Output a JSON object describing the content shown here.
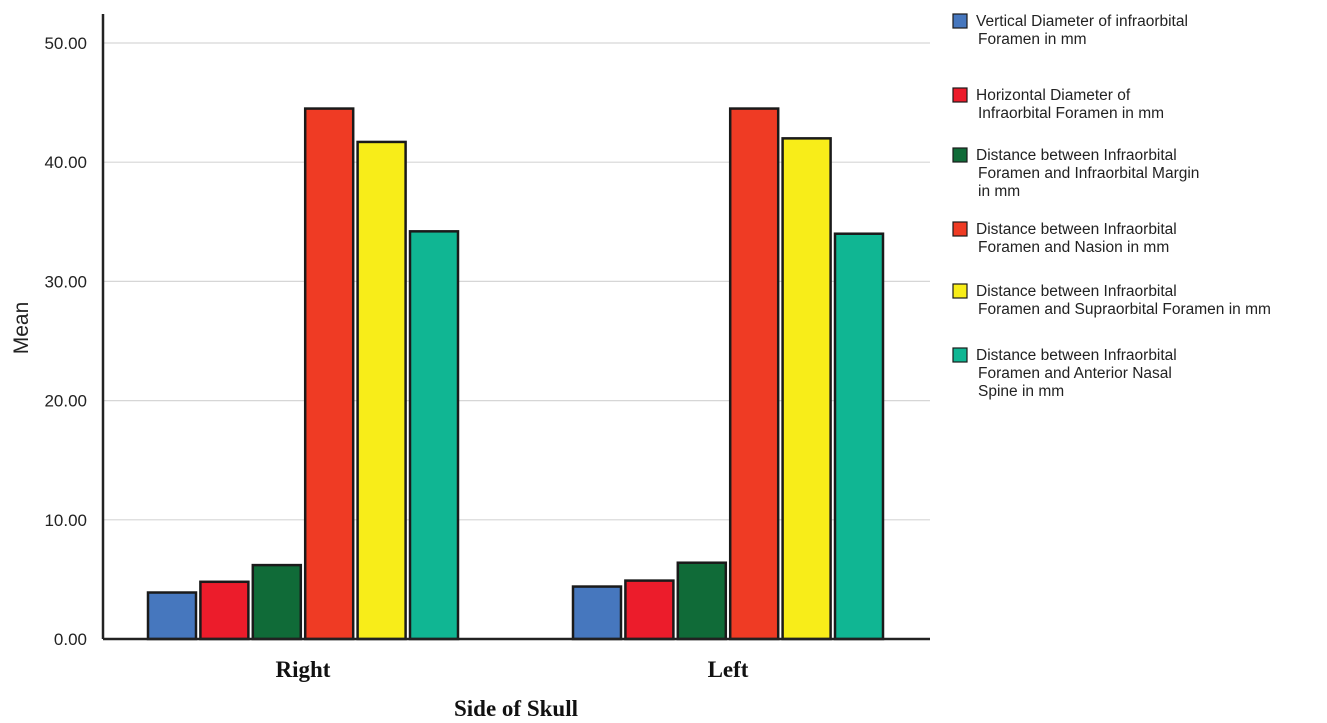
{
  "chart_data": {
    "type": "bar",
    "categories": [
      "Right",
      "Left"
    ],
    "xlabel": "Side of Skull",
    "ylabel": "Mean",
    "ylim": [
      0,
      50
    ],
    "yticks": [
      "0.00",
      "10.00",
      "20.00",
      "30.00",
      "40.00",
      "50.00"
    ],
    "grid": "horizontal",
    "legend_position": "right",
    "series": [
      {
        "name": "Vertical Diameter of infraorbital Foramen in mm",
        "legend_lines": [
          "Vertical Diameter of infraorbital",
          "Foramen in mm"
        ],
        "color": "#4677be",
        "values": [
          3.9,
          4.4
        ]
      },
      {
        "name": "Horizontal Diameter of Infraorbital Foramen in mm",
        "legend_lines": [
          "Horizontal Diameter of",
          "Infraorbital Foramen in mm"
        ],
        "color": "#ec1c2b",
        "values": [
          4.8,
          4.9
        ]
      },
      {
        "name": "Distance between Infraorbital Foramen and Infraorbital Margin in mm",
        "legend_lines": [
          "Distance between Infraorbital",
          "Foramen and Infraorbital Margin",
          "in mm"
        ],
        "color": "#106b38",
        "values": [
          6.2,
          6.4
        ]
      },
      {
        "name": "Distance between Infraorbital Foramen and Nasion in mm",
        "legend_lines": [
          "Distance between Infraorbital",
          "Foramen and Nasion in mm"
        ],
        "color": "#ef3b24",
        "values": [
          44.5,
          44.5
        ]
      },
      {
        "name": "Distance between Infraorbital Foramen and Supraorbital Foramen in mm",
        "legend_lines": [
          "Distance between Infraorbital",
          "Foramen and Supraorbital Foramen in mm"
        ],
        "color": "#f8ed19",
        "values": [
          41.7,
          42.0
        ]
      },
      {
        "name": "Distance between Infraorbital Foramen and Anterior Nasal Spine in mm",
        "legend_lines": [
          "Distance between Infraorbital",
          "Foramen and Anterior Nasal",
          "Spine in mm"
        ],
        "color": "#10b693",
        "values": [
          34.2,
          34.0
        ]
      }
    ]
  }
}
